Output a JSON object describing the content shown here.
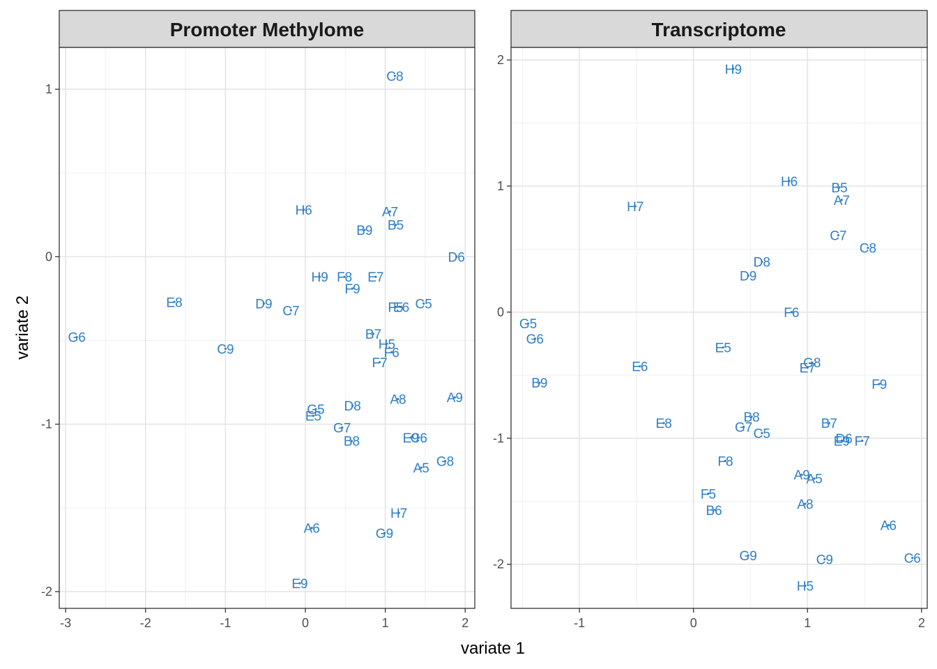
{
  "chart_data": {
    "type": "scatter",
    "xlabel": "variate 1",
    "ylabel": "variate 2",
    "label_color": "#2E7EC8",
    "point_color": "#2E7EC8",
    "grid": true,
    "legend": "none",
    "panels": [
      {
        "title": "Promoter Methylome",
        "xlim": [
          -3.08,
          2.12
        ],
        "ylim": [
          -2.1,
          1.25
        ],
        "xticks": [
          "-3",
          "-2",
          "-1",
          "0",
          "1",
          "2"
        ],
        "xtick_values": [
          -3,
          -2,
          -1,
          0,
          1,
          2
        ],
        "yticks": [
          "-2",
          "-1",
          "0",
          "1"
        ],
        "ytick_values": [
          -2,
          -1,
          0,
          1
        ],
        "points": [
          {
            "label": "C8",
            "x": 1.12,
            "y": 1.08
          },
          {
            "label": "H6",
            "x": -0.02,
            "y": 0.28
          },
          {
            "label": "A7",
            "x": 1.06,
            "y": 0.27
          },
          {
            "label": "B5",
            "x": 1.13,
            "y": 0.19
          },
          {
            "label": "B9",
            "x": 0.74,
            "y": 0.16
          },
          {
            "label": "D6",
            "x": 1.89,
            "y": 0.0
          },
          {
            "label": "H9",
            "x": 0.18,
            "y": -0.12
          },
          {
            "label": "F8",
            "x": 0.49,
            "y": -0.12
          },
          {
            "label": "E7",
            "x": 0.88,
            "y": -0.12
          },
          {
            "label": "F9",
            "x": 0.59,
            "y": -0.19
          },
          {
            "label": "E8",
            "x": -1.64,
            "y": -0.27
          },
          {
            "label": "D9",
            "x": -0.52,
            "y": -0.28
          },
          {
            "label": "C7",
            "x": -0.18,
            "y": -0.32
          },
          {
            "label": "F5",
            "x": 1.13,
            "y": -0.3
          },
          {
            "label": "E6",
            "x": 1.2,
            "y": -0.3
          },
          {
            "label": "C5",
            "x": 1.48,
            "y": -0.28
          },
          {
            "label": "G6",
            "x": -2.86,
            "y": -0.48
          },
          {
            "label": "B7",
            "x": 0.85,
            "y": -0.46
          },
          {
            "label": "H5",
            "x": 1.02,
            "y": -0.52
          },
          {
            "label": "C9",
            "x": -1.0,
            "y": -0.55
          },
          {
            "label": "F6",
            "x": 1.08,
            "y": -0.57
          },
          {
            "label": "F7",
            "x": 0.93,
            "y": -0.63
          },
          {
            "label": "A9",
            "x": 1.87,
            "y": -0.84
          },
          {
            "label": "A8",
            "x": 1.16,
            "y": -0.85
          },
          {
            "label": "D8",
            "x": 0.59,
            "y": -0.89
          },
          {
            "label": "G5",
            "x": 0.13,
            "y": -0.91
          },
          {
            "label": "E5",
            "x": 0.1,
            "y": -0.95
          },
          {
            "label": "G7",
            "x": 0.46,
            "y": -1.02
          },
          {
            "label": "B8",
            "x": 0.58,
            "y": -1.1
          },
          {
            "label": "E9",
            "x": 1.32,
            "y": -1.08
          },
          {
            "label": "C6",
            "x": 1.42,
            "y": -1.08
          },
          {
            "label": "G8",
            "x": 1.75,
            "y": -1.22
          },
          {
            "label": "A5",
            "x": 1.45,
            "y": -1.26
          },
          {
            "label": "H7",
            "x": 1.17,
            "y": -1.53
          },
          {
            "label": "A6",
            "x": 0.08,
            "y": -1.62
          },
          {
            "label": "G9",
            "x": 0.99,
            "y": -1.65
          },
          {
            "label": "E9",
            "x": -0.07,
            "y": -1.95
          }
        ]
      },
      {
        "title": "Transcriptome",
        "xlim": [
          -1.6,
          2.05
        ],
        "ylim": [
          -2.35,
          2.1
        ],
        "xticks": [
          "-1",
          "0",
          "1",
          "2"
        ],
        "xtick_values": [
          -1,
          0,
          1,
          2
        ],
        "yticks": [
          "-2",
          "-1",
          "0",
          "1",
          "2"
        ],
        "ytick_values": [
          -2,
          -1,
          0,
          1,
          2
        ],
        "points": [
          {
            "label": "H9",
            "x": 0.35,
            "y": 1.93
          },
          {
            "label": "H6",
            "x": 0.84,
            "y": 1.04
          },
          {
            "label": "B5",
            "x": 1.28,
            "y": 0.99
          },
          {
            "label": "H7",
            "x": -0.51,
            "y": 0.84
          },
          {
            "label": "A7",
            "x": 1.3,
            "y": 0.89
          },
          {
            "label": "C7",
            "x": 1.27,
            "y": 0.61
          },
          {
            "label": "C8",
            "x": 1.53,
            "y": 0.51
          },
          {
            "label": "D8",
            "x": 0.6,
            "y": 0.4
          },
          {
            "label": "D9",
            "x": 0.48,
            "y": 0.29
          },
          {
            "label": "F6",
            "x": 0.86,
            "y": 0.0
          },
          {
            "label": "G5",
            "x": -1.45,
            "y": -0.09
          },
          {
            "label": "G6",
            "x": -1.39,
            "y": -0.21
          },
          {
            "label": "E5",
            "x": 0.26,
            "y": -0.28
          },
          {
            "label": "G8",
            "x": 1.04,
            "y": -0.4
          },
          {
            "label": "E6",
            "x": -0.47,
            "y": -0.43
          },
          {
            "label": "E7",
            "x": 1.0,
            "y": -0.44
          },
          {
            "label": "B9",
            "x": -1.35,
            "y": -0.56
          },
          {
            "label": "F9",
            "x": 1.63,
            "y": -0.57
          },
          {
            "label": "B8",
            "x": 0.51,
            "y": -0.83
          },
          {
            "label": "E8",
            "x": -0.26,
            "y": -0.88
          },
          {
            "label": "G7",
            "x": 0.44,
            "y": -0.91
          },
          {
            "label": "C5",
            "x": 0.6,
            "y": -0.96
          },
          {
            "label": "B7",
            "x": 1.19,
            "y": -0.88
          },
          {
            "label": "D6",
            "x": 1.32,
            "y": -1.0
          },
          {
            "label": "E9",
            "x": 1.3,
            "y": -1.02
          },
          {
            "label": "F7",
            "x": 1.48,
            "y": -1.02
          },
          {
            "label": "F8",
            "x": 0.28,
            "y": -1.18
          },
          {
            "label": "A9",
            "x": 0.95,
            "y": -1.29
          },
          {
            "label": "A5",
            "x": 1.06,
            "y": -1.32
          },
          {
            "label": "F5",
            "x": 0.13,
            "y": -1.44
          },
          {
            "label": "A8",
            "x": 0.98,
            "y": -1.52
          },
          {
            "label": "B6",
            "x": 0.18,
            "y": -1.57
          },
          {
            "label": "A6",
            "x": 1.71,
            "y": -1.69
          },
          {
            "label": "G9",
            "x": 0.48,
            "y": -1.93
          },
          {
            "label": "C6",
            "x": 1.92,
            "y": -1.95
          },
          {
            "label": "C9",
            "x": 1.15,
            "y": -1.96
          },
          {
            "label": "H5",
            "x": 0.98,
            "y": -2.17
          }
        ]
      }
    ]
  }
}
